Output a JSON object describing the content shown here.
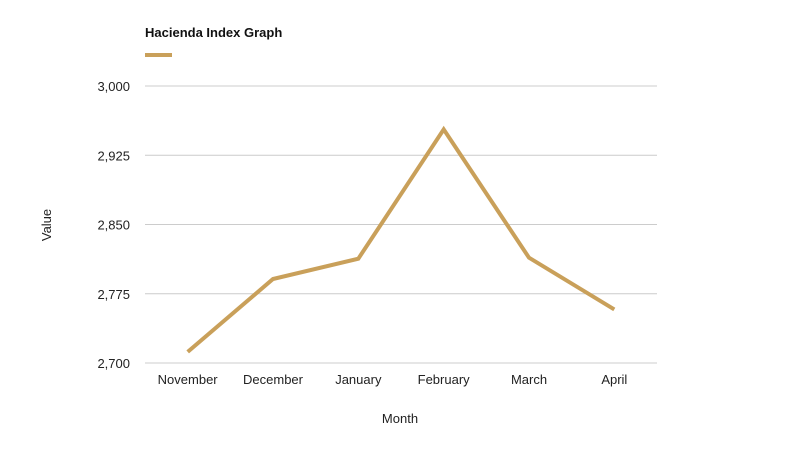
{
  "chart_data": {
    "type": "line",
    "title": "Hacienda Index Graph",
    "xlabel": "Month",
    "ylabel": "Value",
    "categories": [
      "November",
      "December",
      "January",
      "February",
      "March",
      "April"
    ],
    "series": [
      {
        "values": [
          2712,
          2791,
          2813,
          2953,
          2814,
          2758
        ]
      }
    ],
    "ylim": [
      2700,
      3000
    ],
    "yticks": [
      2700,
      2775,
      2850,
      2925,
      3000
    ],
    "ytick_labels": [
      "2,700",
      "2,775",
      "2,850",
      "2,925",
      "3,000"
    ],
    "grid": true,
    "legend": "top-left",
    "colors": {
      "series": "#c9a05a",
      "grid": "#cccccc"
    }
  }
}
